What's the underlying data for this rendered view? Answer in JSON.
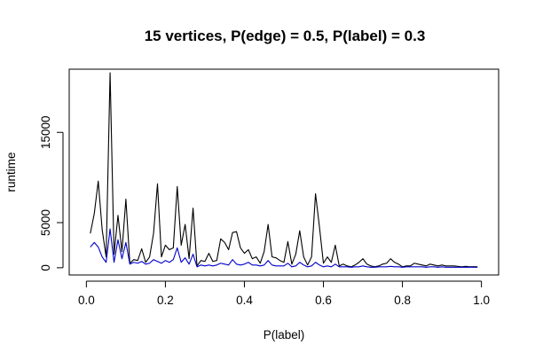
{
  "chart_data": {
    "type": "line",
    "title": "15 vertices, P(edge) = 0.5, P(label) = 0.3",
    "xlabel": "P(label)",
    "ylabel": "runtime",
    "xlim": [
      0,
      1
    ],
    "ylim": [
      -800,
      22000
    ],
    "xticks": [
      0,
      0.2,
      0.4,
      0.6,
      0.8,
      1
    ],
    "xtick_labels": [
      "0.0",
      "0.2",
      "0.4",
      "0.6",
      "0.8",
      "1.0"
    ],
    "yticks": [
      0,
      5000,
      15000
    ],
    "ytick_labels": [
      "0",
      "5000",
      "15000"
    ],
    "grid": false,
    "legend": "none",
    "x": [
      0.01,
      0.02,
      0.03,
      0.04,
      0.05,
      0.06,
      0.07,
      0.08,
      0.09,
      0.1,
      0.11,
      0.12,
      0.13,
      0.14,
      0.15,
      0.16,
      0.17,
      0.18,
      0.19,
      0.2,
      0.21,
      0.22,
      0.23,
      0.24,
      0.25,
      0.26,
      0.27,
      0.28,
      0.29,
      0.3,
      0.31,
      0.32,
      0.33,
      0.34,
      0.35,
      0.36,
      0.37,
      0.38,
      0.39,
      0.4,
      0.41,
      0.42,
      0.43,
      0.44,
      0.45,
      0.46,
      0.47,
      0.48,
      0.49,
      0.5,
      0.51,
      0.52,
      0.53,
      0.54,
      0.55,
      0.56,
      0.57,
      0.58,
      0.59,
      0.6,
      0.61,
      0.62,
      0.63,
      0.64,
      0.65,
      0.66,
      0.67,
      0.68,
      0.69,
      0.7,
      0.71,
      0.72,
      0.73,
      0.74,
      0.75,
      0.76,
      0.77,
      0.78,
      0.79,
      0.8,
      0.81,
      0.82,
      0.83,
      0.84,
      0.85,
      0.86,
      0.87,
      0.88,
      0.89,
      0.9,
      0.91,
      0.92,
      0.93,
      0.94,
      0.95,
      0.96,
      0.97,
      0.98,
      0.99
    ],
    "series": [
      {
        "color": "#000000",
        "values": [
          3800,
          6000,
          9600,
          4200,
          1200,
          21600,
          1500,
          5800,
          1800,
          7600,
          500,
          900,
          800,
          2100,
          600,
          1200,
          3800,
          9300,
          1200,
          2500,
          2000,
          2200,
          9000,
          2500,
          4800,
          1000,
          6600,
          200,
          800,
          700,
          1600,
          700,
          800,
          3200,
          2800,
          2000,
          3900,
          4000,
          2200,
          1600,
          2000,
          1000,
          1200,
          500,
          1800,
          4800,
          1200,
          1100,
          800,
          600,
          2900,
          400,
          1500,
          4100,
          1200,
          300,
          1200,
          8200,
          4500,
          500,
          1200,
          600,
          2500,
          200,
          400,
          200,
          100,
          300,
          600,
          1000,
          400,
          200,
          100,
          200,
          400,
          500,
          1000,
          600,
          400,
          100,
          200,
          200,
          500,
          400,
          300,
          200,
          400,
          300,
          200,
          300,
          200,
          200,
          200,
          150,
          100,
          150,
          100,
          120,
          100
        ]
      },
      {
        "color": "#0000cc",
        "values": [
          2300,
          2800,
          2300,
          1200,
          600,
          4300,
          600,
          3100,
          1000,
          2800,
          400,
          600,
          500,
          700,
          400,
          500,
          900,
          700,
          500,
          800,
          600,
          900,
          2200,
          600,
          1100,
          400,
          1500,
          100,
          300,
          200,
          300,
          200,
          300,
          500,
          400,
          300,
          900,
          400,
          300,
          400,
          600,
          300,
          300,
          200,
          300,
          800,
          300,
          200,
          200,
          200,
          500,
          100,
          200,
          600,
          300,
          100,
          200,
          600,
          300,
          100,
          200,
          100,
          400,
          100,
          100,
          100,
          50,
          100,
          100,
          200,
          100,
          50,
          50,
          100,
          100,
          100,
          150,
          100,
          100,
          50,
          100,
          100,
          100,
          100,
          100,
          50,
          100,
          100,
          50,
          100,
          50,
          50,
          50,
          50,
          50,
          50,
          50,
          50,
          50
        ]
      }
    ]
  }
}
